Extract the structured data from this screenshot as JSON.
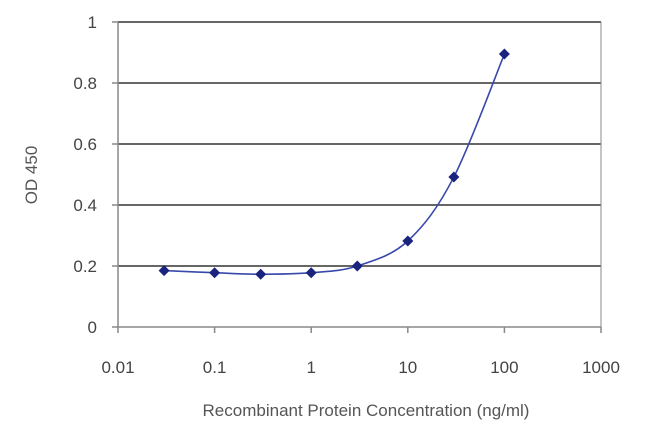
{
  "chart_data": {
    "type": "line",
    "title": "",
    "xlabel": "Recombinant Protein Concentration (ng/ml)",
    "ylabel": "OD 450",
    "x_scale": "log",
    "xlim": [
      0.01,
      1000
    ],
    "ylim": [
      0,
      1
    ],
    "x_ticks": [
      0.01,
      0.1,
      1,
      10,
      100,
      1000
    ],
    "x_tick_labels": [
      "0.01",
      "0.1",
      "1",
      "10",
      "100",
      "1000"
    ],
    "y_ticks": [
      0,
      0.2,
      0.4,
      0.6,
      0.8,
      1
    ],
    "y_tick_labels": [
      "0",
      "0.2",
      "0.4",
      "0.6",
      "0.8",
      "1"
    ],
    "grid": "horizontal",
    "series": [
      {
        "x": [
          0.03,
          0.1,
          0.3,
          1,
          3,
          10,
          30,
          100
        ],
        "y": [
          0.185,
          0.178,
          0.173,
          0.178,
          0.2,
          0.282,
          0.492,
          0.895
        ]
      }
    ],
    "colors": {
      "marker": "#1a237e",
      "line": "#3949ab",
      "grid": "#333333",
      "axis": "#888888"
    }
  }
}
